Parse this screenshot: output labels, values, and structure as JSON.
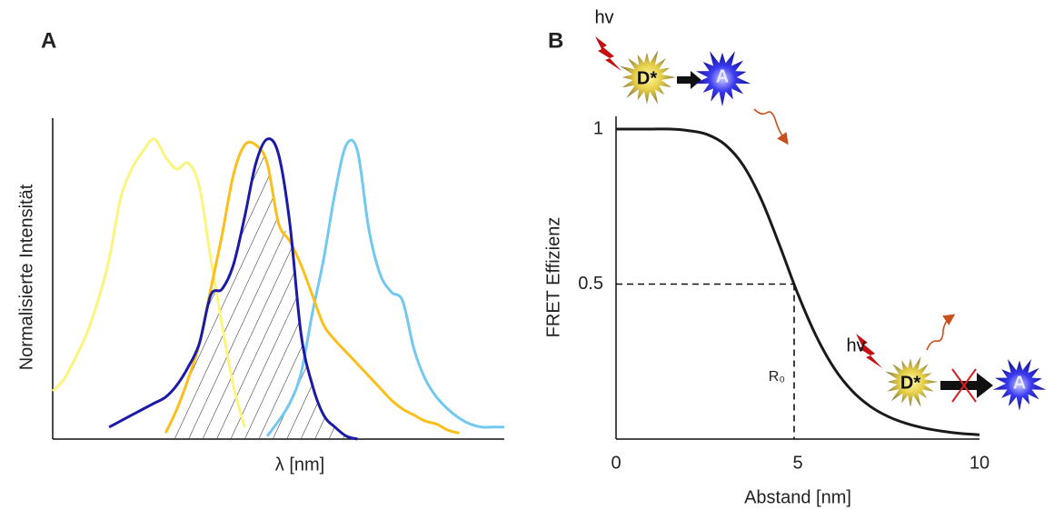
{
  "chart_data": [
    {
      "type": "line",
      "panel_label": "A",
      "xlabel": "λ [nm]",
      "ylabel": "Normalisierte Intensität",
      "x": [
        0,
        2.5,
        5,
        7.5,
        10,
        12.5,
        15,
        17.5,
        20,
        22.5,
        25,
        27.5,
        30,
        32.5,
        35,
        37.5,
        40,
        42.5,
        45,
        47.5,
        50,
        52.5,
        55,
        57.5,
        60,
        62.5,
        65,
        67.5,
        70,
        72.5,
        75,
        77.5,
        80,
        82.5,
        85,
        87.5,
        90,
        92.5,
        95,
        97.5,
        100
      ],
      "xlim": [
        0,
        100
      ],
      "ylim": [
        0,
        1
      ],
      "series": [
        {
          "color": "#fbf47f",
          "values": [
            0.16,
            0.2,
            0.27,
            0.35,
            0.46,
            0.6,
            0.8,
            0.9,
            0.96,
            1.0,
            0.94,
            0.9,
            0.92,
            0.84,
            0.6,
            0.38,
            0.18,
            0.04,
            null,
            null,
            null,
            null,
            null,
            null,
            null,
            null,
            null,
            null,
            null,
            null,
            null,
            null,
            null,
            null,
            null,
            null,
            null,
            null,
            null,
            null,
            null
          ]
        },
        {
          "color": "#72c8ef",
          "values": [
            null,
            null,
            null,
            null,
            null,
            null,
            null,
            null,
            null,
            null,
            null,
            null,
            null,
            null,
            null,
            null,
            null,
            null,
            null,
            0.01,
            0.06,
            0.12,
            0.22,
            0.42,
            0.6,
            0.82,
            0.98,
            0.96,
            0.7,
            0.55,
            0.49,
            0.46,
            0.3,
            0.2,
            0.14,
            0.1,
            0.07,
            0.05,
            0.04,
            0.04,
            0.04
          ]
        },
        {
          "color": "#fbbf1b",
          "values": [
            null,
            null,
            null,
            null,
            null,
            null,
            null,
            null,
            null,
            null,
            0.02,
            0.1,
            0.2,
            0.32,
            0.5,
            0.68,
            0.88,
            0.98,
            0.98,
            0.92,
            0.72,
            0.66,
            0.58,
            0.48,
            0.38,
            0.33,
            0.29,
            0.25,
            0.21,
            0.17,
            0.13,
            0.1,
            0.08,
            0.06,
            0.05,
            0.03,
            0.02,
            null,
            null,
            null,
            null
          ]
        },
        {
          "color": "#1a1aa6",
          "values": [
            null,
            null,
            null,
            null,
            null,
            0.04,
            0.06,
            0.08,
            0.1,
            0.12,
            0.14,
            0.18,
            0.24,
            0.32,
            0.48,
            0.5,
            0.58,
            0.74,
            0.92,
            1.0,
            0.95,
            0.72,
            0.35,
            0.18,
            0.08,
            0.04,
            0.01,
            0.0,
            null,
            null,
            null,
            null,
            null,
            null,
            null,
            null,
            null,
            null,
            null,
            null,
            null
          ]
        }
      ]
    },
    {
      "type": "line",
      "panel_label": "B",
      "xlabel": "Abstand [nm]",
      "ylabel": "FRET Effizienz",
      "x": [
        0,
        0.5,
        1,
        1.5,
        2,
        2.5,
        3,
        3.5,
        4,
        4.5,
        5,
        5.5,
        6,
        6.5,
        7,
        7.5,
        8,
        8.5,
        9,
        9.5,
        10
      ],
      "xlim": [
        0,
        10
      ],
      "ylim": [
        0,
        1
      ],
      "xticks": [
        0,
        5,
        10
      ],
      "yticks": [
        0.5,
        1
      ],
      "series": [
        {
          "color": "#1a1a1a",
          "values": [
            1.0,
            1.0,
            1.0,
            1.0,
            0.995,
            0.983,
            0.95,
            0.883,
            0.772,
            0.625,
            0.469,
            0.334,
            0.229,
            0.155,
            0.105,
            0.072,
            0.05,
            0.035,
            0.025,
            0.018,
            0.014
          ]
        }
      ],
      "r0": {
        "label": "R₀",
        "x": 4.9,
        "y": 0.5
      },
      "annotations": [
        "hv",
        "D*",
        "A",
        "hv",
        "D*",
        "A"
      ]
    }
  ]
}
